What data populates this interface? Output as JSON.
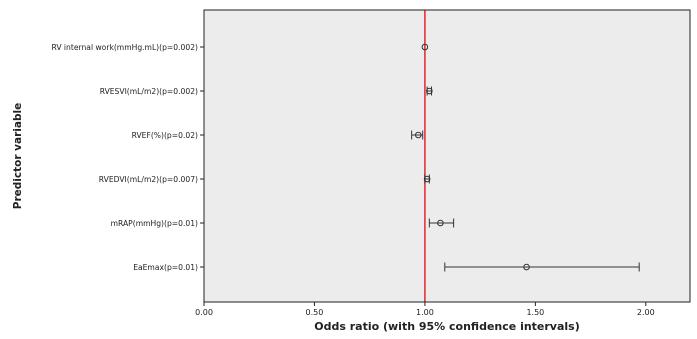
{
  "chart_data": {
    "type": "forest",
    "title": "",
    "xlabel": "Odds ratio (with 95% confidence intervals)",
    "ylabel": "Predictor variable",
    "xlim": [
      0.0,
      2.2
    ],
    "xticks": [
      0.0,
      0.5,
      1.0,
      1.5,
      2.0
    ],
    "xtick_labels": [
      "0.00",
      "0.50",
      "1.00",
      "1.50",
      "2.00"
    ],
    "reference_line": {
      "x": 1.0,
      "color": "#e0191f"
    },
    "grid": false,
    "plot_background": "#ececec",
    "marker": "open-circle",
    "predictors": [
      {
        "label": "RV internal work(mmHg.mL)(p=0.002)",
        "or": 1.0,
        "ci_low": 1.0,
        "ci_high": 1.0
      },
      {
        "label": "RVESVI(mL/m2)(p=0.002)",
        "or": 1.02,
        "ci_low": 1.01,
        "ci_high": 1.03
      },
      {
        "label": "RVEF(%)(p=0.02)",
        "or": 0.97,
        "ci_low": 0.94,
        "ci_high": 0.99
      },
      {
        "label": "RVEDVI(mL/m2)(p=0.007)",
        "or": 1.01,
        "ci_low": 1.0,
        "ci_high": 1.02
      },
      {
        "label": "mRAP(mmHg)(p=0.01)",
        "or": 1.07,
        "ci_low": 1.02,
        "ci_high": 1.13
      },
      {
        "label": "EaEmax(p=0.01)",
        "or": 1.46,
        "ci_low": 1.09,
        "ci_high": 1.97
      }
    ]
  }
}
